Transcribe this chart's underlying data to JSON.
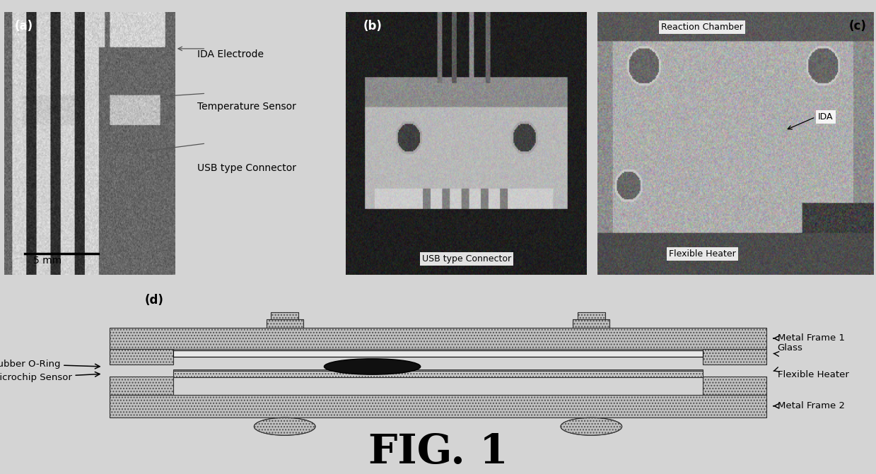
{
  "title": "FIG. 1",
  "title_fontsize": 42,
  "title_fontweight": "bold",
  "bg_color": "#d4d4d4",
  "panel_a_annotation_labels": [
    "IDA Electrode",
    "Temperature Sensor",
    "USB type Connector"
  ],
  "panel_a_scale": "5 mm",
  "panel_b_label": "USB type Connector",
  "panel_c_labels": [
    "Reaction Chamber",
    "IDA",
    "Flexible Heater"
  ],
  "panel_d_right_labels": [
    "Metal Frame 1",
    "Glass",
    "Flexible Heater",
    "Metal Frame 2"
  ],
  "panel_d_left_labels": [
    "Rubber O-Ring",
    "Microchip Sensor"
  ],
  "hatch_color": "#c0c0c0",
  "fig1_label_fontsize": 11,
  "annotation_fontsize": 10,
  "panel_label_fontsize": 12
}
